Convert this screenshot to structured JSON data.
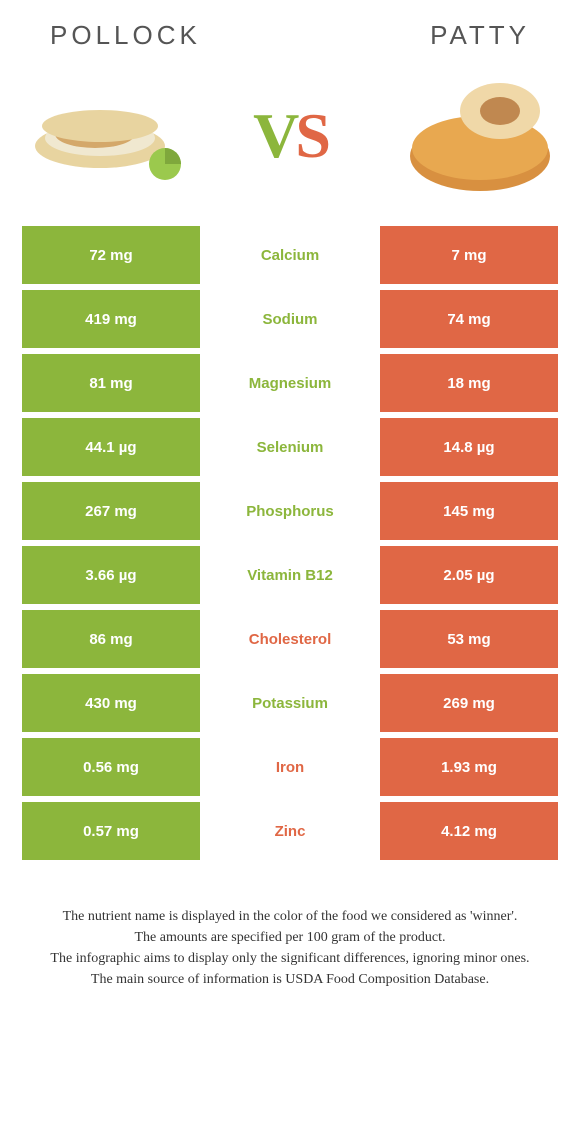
{
  "header": {
    "left": "POLLOCK",
    "right": "PATTY"
  },
  "colors": {
    "green": "#8cb63c",
    "orange": "#e06745",
    "white": "#ffffff",
    "text": "#333333"
  },
  "vs": {
    "v": "V",
    "s": "S"
  },
  "rows": [
    {
      "left": "72 mg",
      "label": "Calcium",
      "right": "7 mg",
      "winner": "left"
    },
    {
      "left": "419 mg",
      "label": "Sodium",
      "right": "74 mg",
      "winner": "left"
    },
    {
      "left": "81 mg",
      "label": "Magnesium",
      "right": "18 mg",
      "winner": "left"
    },
    {
      "left": "44.1 µg",
      "label": "Selenium",
      "right": "14.8 µg",
      "winner": "left"
    },
    {
      "left": "267 mg",
      "label": "Phosphorus",
      "right": "145 mg",
      "winner": "left"
    },
    {
      "left": "3.66 µg",
      "label": "Vitamin B12",
      "right": "2.05 µg",
      "winner": "left"
    },
    {
      "left": "86 mg",
      "label": "Cholesterol",
      "right": "53 mg",
      "winner": "right"
    },
    {
      "left": "430 mg",
      "label": "Potassium",
      "right": "269 mg",
      "winner": "left"
    },
    {
      "left": "0.56 mg",
      "label": "Iron",
      "right": "1.93 mg",
      "winner": "right"
    },
    {
      "left": "0.57 mg",
      "label": "Zinc",
      "right": "4.12 mg",
      "winner": "right"
    }
  ],
  "footnote": {
    "line1": "The nutrient name is displayed in the color of the food we considered as 'winner'.",
    "line2": "The amounts are specified per 100 gram of the product.",
    "line3": "The infographic aims to display only the significant differences, ignoring minor ones.",
    "line4": "The main source of information is USDA Food Composition Database."
  }
}
